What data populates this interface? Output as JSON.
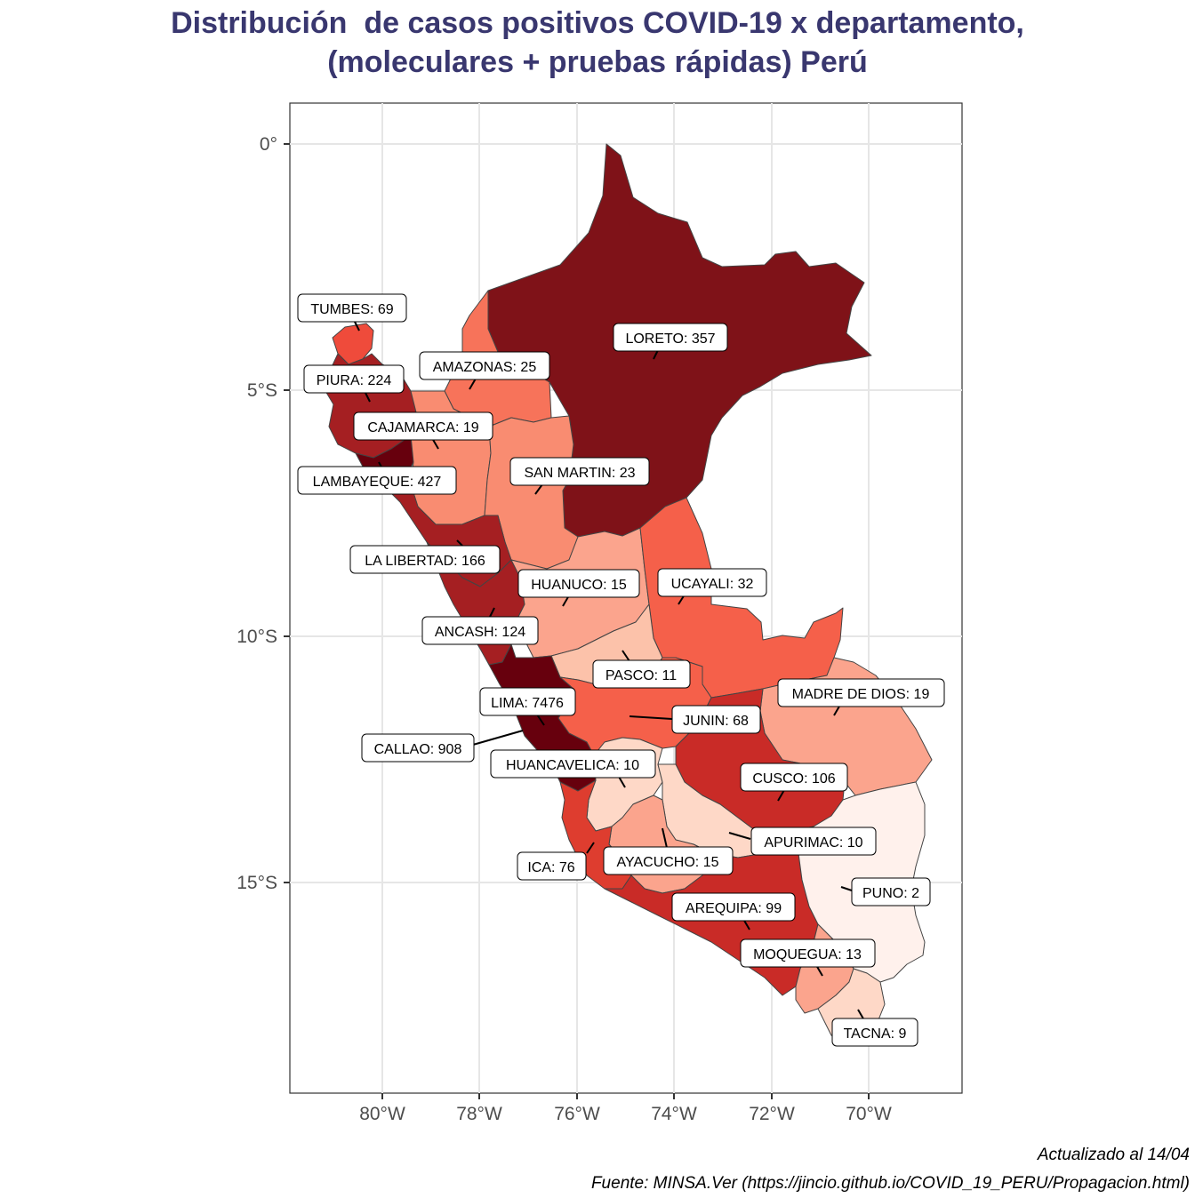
{
  "title": {
    "line1": "Distribución  de casos positivos COVID-19 x departamento,",
    "line2": "(moleculares + pruebas rápidas) Perú"
  },
  "axes": {
    "x_ticks": [
      "80°W",
      "78°W",
      "76°W",
      "74°W",
      "72°W",
      "70°W"
    ],
    "y_ticks": [
      "0°",
      "5°S",
      "10°S",
      "15°S"
    ]
  },
  "colors": {
    "darkest": "#67000d",
    "dark": "#7f1218",
    "red_dark": "#a51f22",
    "red": "#c92b27",
    "red_mid": "#de3d2f",
    "red_light": "#f5604a",
    "salmon": "#f7735a",
    "salmon_light": "#f98c71",
    "pink": "#fba48d",
    "pink_light": "#fcc2aa",
    "pale": "#fed8c7",
    "palest": "#fff1ec"
  },
  "departments": [
    {
      "name": "TUMBES",
      "cases": 69,
      "label": "TUMBES: 69"
    },
    {
      "name": "PIURA",
      "cases": 224,
      "label": "PIURA: 224"
    },
    {
      "name": "AMAZONAS",
      "cases": 25,
      "label": "AMAZONAS: 25"
    },
    {
      "name": "LORETO",
      "cases": 357,
      "label": "LORETO: 357"
    },
    {
      "name": "CAJAMARCA",
      "cases": 19,
      "label": "CAJAMARCA: 19"
    },
    {
      "name": "LAMBAYEQUE",
      "cases": 427,
      "label": "LAMBAYEQUE: 427"
    },
    {
      "name": "SAN MARTIN",
      "cases": 23,
      "label": "SAN MARTIN: 23"
    },
    {
      "name": "LA LIBERTAD",
      "cases": 166,
      "label": "LA LIBERTAD: 166"
    },
    {
      "name": "HUANUCO",
      "cases": 15,
      "label": "HUANUCO: 15"
    },
    {
      "name": "UCAYALI",
      "cases": 32,
      "label": "UCAYALI: 32"
    },
    {
      "name": "ANCASH",
      "cases": 124,
      "label": "ANCASH: 124"
    },
    {
      "name": "PASCO",
      "cases": 11,
      "label": "PASCO: 11"
    },
    {
      "name": "MADRE DE DIOS",
      "cases": 19,
      "label": "MADRE DE DIOS: 19"
    },
    {
      "name": "LIMA",
      "cases": 7476,
      "label": "LIMA: 7476"
    },
    {
      "name": "JUNIN",
      "cases": 68,
      "label": "JUNIN: 68"
    },
    {
      "name": "CALLAO",
      "cases": 908,
      "label": "CALLAO: 908"
    },
    {
      "name": "HUANCAVELICA",
      "cases": 10,
      "label": "HUANCAVELICA: 10"
    },
    {
      "name": "CUSCO",
      "cases": 106,
      "label": "CUSCO: 106"
    },
    {
      "name": "APURIMAC",
      "cases": 10,
      "label": "APURIMAC: 10"
    },
    {
      "name": "ICA",
      "cases": 76,
      "label": "ICA: 76"
    },
    {
      "name": "AYACUCHO",
      "cases": 15,
      "label": "AYACUCHO: 15"
    },
    {
      "name": "PUNO",
      "cases": 2,
      "label": "PUNO: 2"
    },
    {
      "name": "AREQUIPA",
      "cases": 99,
      "label": "AREQUIPA: 99"
    },
    {
      "name": "MOQUEGUA",
      "cases": 13,
      "label": "MOQUEGUA: 13"
    },
    {
      "name": "TACNA",
      "cases": 9,
      "label": "TACNA: 9"
    }
  ],
  "caption": {
    "line1": "Actualizado al 14/04",
    "line2": "Fuente: MINSA.Ver (https://jincio.github.io/COVID_19_PERU/Propagacion.html)"
  }
}
